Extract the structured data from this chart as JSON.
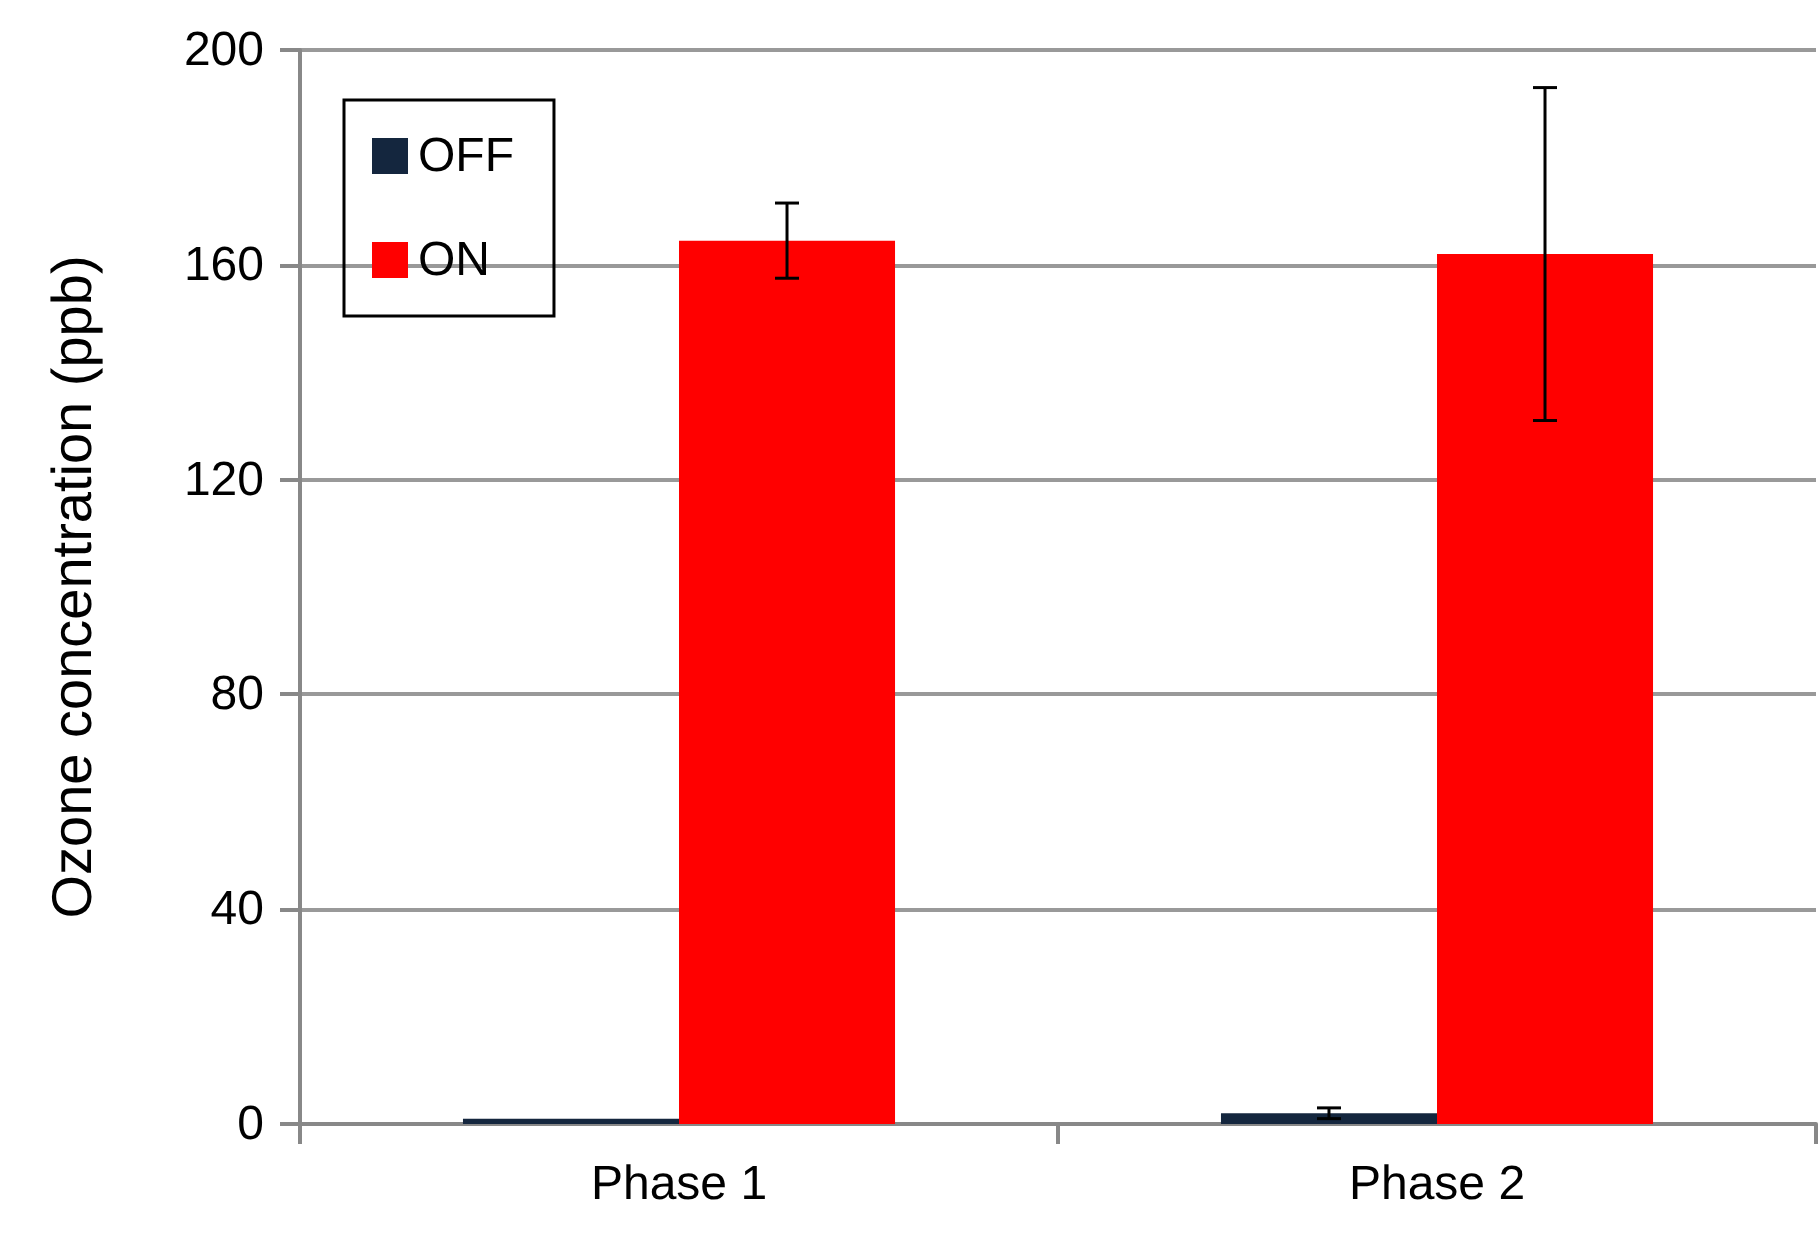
{
  "chart_data": {
    "type": "bar",
    "ylabel": "Ozone concentration (ppb)",
    "categories": [
      "Phase 1",
      "Phase 2"
    ],
    "series": [
      {
        "name": "OFF",
        "color": "#14263e",
        "values": [
          1,
          2
        ],
        "errors": [
          null,
          1
        ]
      },
      {
        "name": "ON",
        "color": "#ff0000",
        "values": [
          164.5,
          162
        ],
        "errors": [
          7,
          31
        ]
      }
    ],
    "ylim": [
      0,
      200
    ],
    "yticks": [
      0,
      40,
      80,
      120,
      160,
      200
    ],
    "grid": "y",
    "legend": "top left"
  }
}
